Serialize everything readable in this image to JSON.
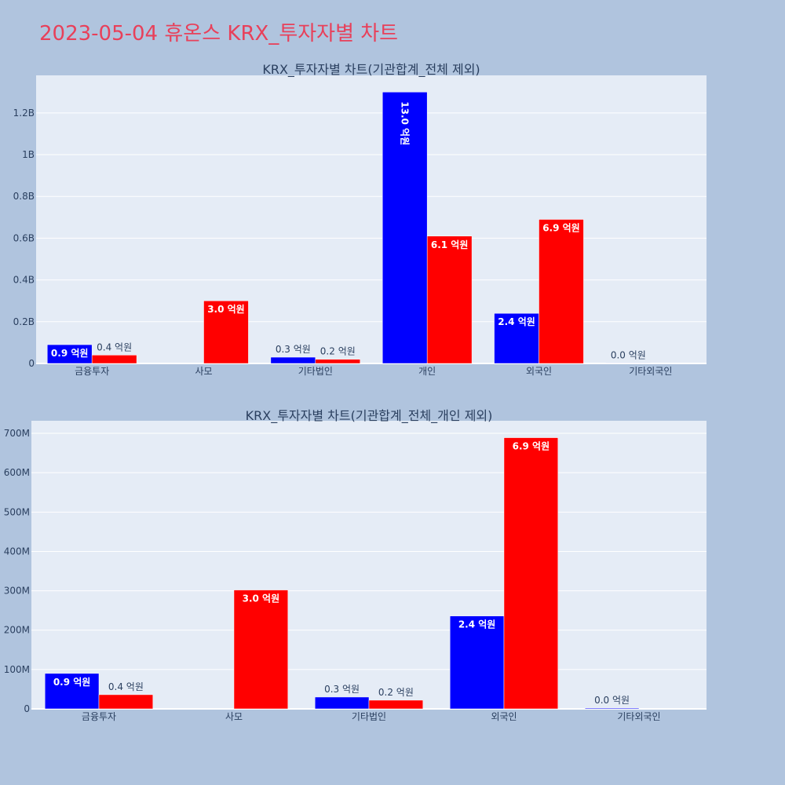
{
  "page": {
    "title": "2023-05-04 휴온스 KRX_투자자별 차트"
  },
  "colors": {
    "buy": "#0000ff",
    "sell": "#ff0000",
    "plot_bg": "#e5ecf6",
    "page_bg": "#b0c4de"
  },
  "chart_data": [
    {
      "type": "bar",
      "title": "KRX_투자자별 차트(기관합계_전체 제외)",
      "categories": [
        "금융투자",
        "사모",
        "기타법인",
        "개인",
        "외국인",
        "기타외국인"
      ],
      "ylim": [
        0,
        1380000000
      ],
      "yticks": [
        0,
        200000000,
        400000000,
        600000000,
        800000000,
        1000000000,
        1200000000
      ],
      "ytick_labels": [
        "0",
        "0.2B",
        "0.4B",
        "0.6B",
        "0.8B",
        "1B",
        "1.2B"
      ],
      "grid": true,
      "series": [
        {
          "color": "#0000ff",
          "values": [
            90000000,
            0,
            30000000,
            1300000000,
            240000000,
            2000000
          ],
          "labels": [
            "0.9 억원",
            "",
            "0.3 억원",
            "13.0 억원",
            "2.4 억원",
            "0.0 억원"
          ]
        },
        {
          "color": "#ff0000",
          "values": [
            40000000,
            300000000,
            20000000,
            610000000,
            690000000,
            0
          ],
          "labels": [
            "0.4 억원",
            "3.0 억원",
            "0.2 억원",
            "6.1 억원",
            "6.9 억원",
            ""
          ]
        }
      ]
    },
    {
      "type": "bar",
      "title": "KRX_투자자별 차트(기관합계_전체_개인 제외)",
      "categories": [
        "금융투자",
        "사모",
        "기타법인",
        "외국인",
        "기타외국인"
      ],
      "ylim": [
        0,
        732000000
      ],
      "yticks": [
        0,
        100000000,
        200000000,
        300000000,
        400000000,
        500000000,
        600000000,
        700000000
      ],
      "ytick_labels": [
        "0",
        "100M",
        "200M",
        "300M",
        "400M",
        "500M",
        "600M",
        "700M"
      ],
      "grid": true,
      "series": [
        {
          "color": "#0000ff",
          "values": [
            90000000,
            0,
            30000000,
            236000000,
            2000000
          ],
          "labels": [
            "0.9 억원",
            "",
            "0.3 억원",
            "2.4 억원",
            "0.0 억원"
          ]
        },
        {
          "color": "#ff0000",
          "values": [
            36000000,
            302000000,
            22000000,
            689000000,
            0
          ],
          "labels": [
            "0.4 억원",
            "3.0 억원",
            "0.2 억원",
            "6.9 억원",
            ""
          ]
        }
      ]
    }
  ]
}
